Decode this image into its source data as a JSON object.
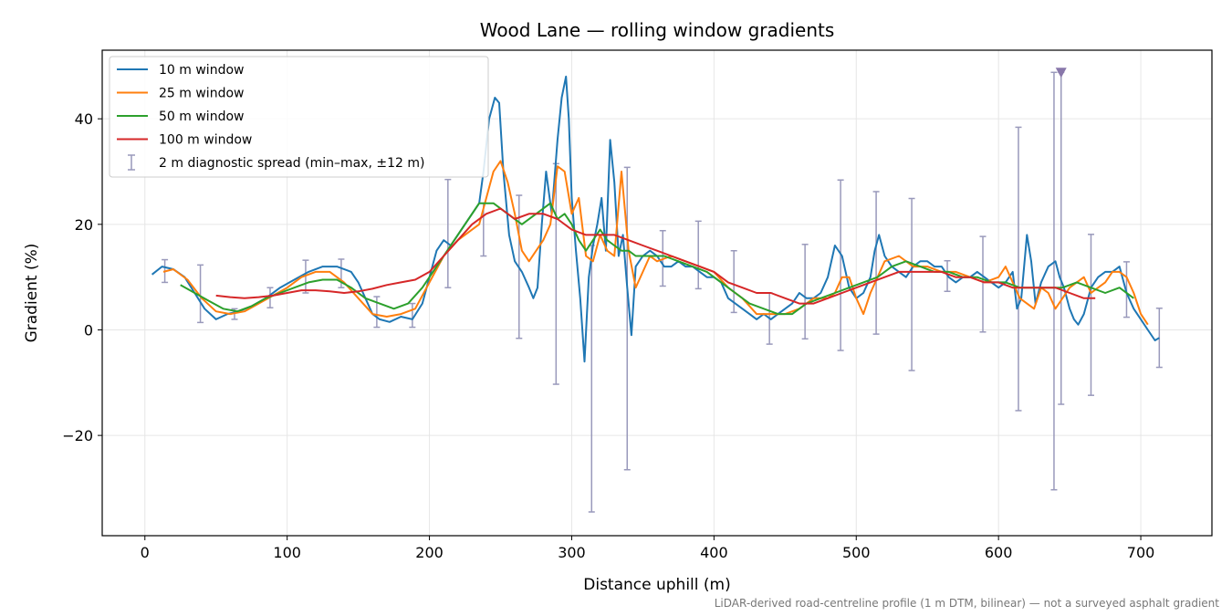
{
  "chart_data": {
    "type": "line",
    "title": "Wood Lane — rolling window gradients",
    "xlabel": "Distance uphill (m)",
    "ylabel": "Gradient (%)",
    "footnote": "LiDAR-derived road-centreline profile (1 m DTM, bilinear) — not a surveyed asphalt gradient",
    "xlim": [
      -30,
      750
    ],
    "ylim": [
      -39,
      53
    ],
    "xticks": [
      0,
      100,
      200,
      300,
      400,
      500,
      600,
      700
    ],
    "yticks": [
      -20,
      0,
      20,
      40
    ],
    "grid": true,
    "legend_position": "top-left",
    "series": [
      {
        "name": "10 m window",
        "color": "#1f77b4",
        "x": [
          5,
          12,
          20,
          28,
          35,
          42,
          50,
          58,
          66,
          75,
          85,
          95,
          105,
          115,
          125,
          135,
          145,
          150,
          155,
          160,
          165,
          172,
          180,
          188,
          195,
          200,
          205,
          210,
          215,
          220,
          225,
          230,
          235,
          238,
          242,
          246,
          249,
          252,
          256,
          260,
          265,
          270,
          273,
          276,
          279,
          282,
          286,
          290,
          293,
          296,
          298,
          300,
          303,
          306,
          309,
          312,
          315,
          318,
          321,
          324,
          327,
          330,
          333,
          336,
          339,
          342,
          345,
          350,
          355,
          360,
          365,
          370,
          375,
          380,
          385,
          390,
          395,
          400,
          405,
          410,
          415,
          420,
          425,
          430,
          435,
          440,
          445,
          450,
          455,
          460,
          465,
          470,
          475,
          480,
          485,
          490,
          495,
          500,
          505,
          510,
          513,
          516,
          520,
          525,
          530,
          535,
          540,
          545,
          550,
          555,
          560,
          565,
          570,
          575,
          580,
          585,
          590,
          595,
          600,
          605,
          610,
          613,
          616,
          620,
          623,
          626,
          630,
          635,
          640,
          643,
          646,
          650,
          653,
          656,
          660,
          665,
          670,
          675,
          680,
          685,
          690,
          695,
          700,
          705,
          710,
          713
        ],
        "y": [
          10.5,
          12,
          11.5,
          10,
          7,
          4,
          2,
          3,
          3.5,
          4.5,
          6,
          8,
          9.5,
          11,
          12,
          12,
          11,
          9,
          6,
          3,
          2,
          1.5,
          2.5,
          2,
          5,
          10,
          15,
          17,
          16,
          18,
          20,
          22,
          24,
          30,
          40,
          44,
          43,
          30,
          18,
          13,
          11,
          8,
          6,
          8,
          20,
          30,
          22,
          36,
          44,
          48,
          40,
          25,
          15,
          6,
          -6,
          10,
          16,
          20,
          25,
          15,
          36,
          28,
          14,
          18,
          8,
          -1,
          12,
          14,
          15,
          14,
          12,
          12,
          13,
          12,
          12,
          11,
          10,
          10,
          9,
          6,
          5,
          4,
          3,
          2,
          3,
          2,
          3,
          4,
          5,
          7,
          6,
          6,
          7,
          10,
          16,
          14,
          8,
          6,
          7,
          10,
          15,
          18,
          14,
          12,
          11,
          10,
          12,
          13,
          13,
          12,
          12,
          10,
          9,
          10,
          10,
          11,
          10,
          9,
          8,
          9,
          11,
          4,
          6,
          18,
          13,
          5,
          9,
          12,
          13,
          10,
          8,
          4,
          2,
          1,
          3,
          8,
          10,
          11,
          11,
          12,
          7,
          4,
          2,
          0,
          -2,
          -1.5
        ]
      },
      {
        "name": "25 m window",
        "color": "#ff7f0e",
        "x": [
          13,
          20,
          30,
          40,
          50,
          60,
          70,
          80,
          90,
          100,
          110,
          120,
          130,
          140,
          150,
          160,
          170,
          180,
          190,
          200,
          210,
          220,
          230,
          235,
          240,
          245,
          250,
          255,
          260,
          265,
          270,
          275,
          280,
          285,
          290,
          295,
          300,
          305,
          310,
          315,
          320,
          325,
          330,
          335,
          340,
          345,
          350,
          355,
          360,
          370,
          380,
          390,
          400,
          410,
          420,
          430,
          440,
          450,
          460,
          470,
          480,
          485,
          490,
          495,
          500,
          505,
          510,
          520,
          530,
          540,
          550,
          560,
          570,
          580,
          590,
          600,
          605,
          610,
          615,
          620,
          625,
          630,
          635,
          640,
          645,
          650,
          655,
          660,
          665,
          670,
          675,
          680,
          685,
          690,
          695,
          700,
          705
        ],
        "y": [
          11,
          11.5,
          9.5,
          6,
          3.5,
          3,
          3.5,
          5,
          6.5,
          8,
          10,
          11,
          11,
          9,
          6,
          3,
          2.5,
          3,
          4,
          9,
          14,
          17,
          19,
          20,
          25,
          30,
          32,
          28,
          22,
          15,
          13,
          15,
          17,
          20,
          31,
          30,
          22,
          25,
          14,
          13,
          18,
          15,
          14,
          30,
          15,
          8,
          11,
          14,
          13,
          14,
          13,
          12,
          11,
          8,
          6,
          3,
          3,
          3,
          4,
          6,
          6,
          7,
          10,
          10,
          6,
          3,
          7,
          13,
          14,
          12,
          12,
          11,
          11,
          10,
          9,
          10,
          12,
          9,
          6,
          5,
          4,
          8,
          7,
          4,
          6,
          8,
          9,
          10,
          7,
          8,
          9,
          11,
          11,
          10,
          7,
          3,
          1
        ]
      },
      {
        "name": "50 m window",
        "color": "#2ca02c",
        "x": [
          25,
          35,
          45,
          55,
          65,
          75,
          85,
          95,
          105,
          115,
          125,
          135,
          145,
          155,
          165,
          175,
          185,
          195,
          205,
          215,
          225,
          235,
          245,
          255,
          265,
          275,
          285,
          290,
          295,
          300,
          305,
          310,
          315,
          320,
          325,
          330,
          335,
          340,
          345,
          355,
          365,
          375,
          385,
          395,
          405,
          415,
          425,
          435,
          445,
          455,
          465,
          475,
          485,
          495,
          505,
          515,
          525,
          535,
          545,
          555,
          565,
          575,
          585,
          595,
          605,
          615,
          625,
          635,
          645,
          655,
          665,
          675,
          685,
          695
        ],
        "y": [
          8.5,
          7,
          5.5,
          4,
          3.5,
          4.5,
          6,
          7,
          8,
          9,
          9.5,
          9.5,
          8,
          6,
          5,
          4,
          5,
          8,
          12,
          16,
          20,
          24,
          24,
          22,
          20,
          22,
          24,
          21,
          22,
          20,
          17,
          15,
          17,
          19,
          17,
          16,
          15,
          15,
          14,
          14,
          14,
          13,
          12,
          11,
          9,
          7,
          5,
          4,
          3,
          3,
          5,
          6,
          7,
          8,
          9,
          10,
          12,
          13,
          12,
          11,
          11,
          10,
          10,
          9,
          9,
          8,
          8,
          8,
          8,
          9,
          8,
          7,
          8,
          6
        ]
      },
      {
        "name": "100 m window",
        "color": "#d62728",
        "x": [
          50,
          60,
          70,
          80,
          90,
          100,
          110,
          120,
          130,
          140,
          150,
          160,
          170,
          180,
          190,
          200,
          210,
          220,
          230,
          240,
          250,
          260,
          270,
          280,
          290,
          300,
          310,
          320,
          330,
          340,
          350,
          360,
          370,
          380,
          390,
          400,
          410,
          420,
          430,
          440,
          450,
          460,
          470,
          480,
          490,
          500,
          510,
          520,
          530,
          540,
          550,
          560,
          570,
          580,
          590,
          600,
          610,
          620,
          630,
          640,
          650,
          660,
          668
        ],
        "y": [
          6.5,
          6.2,
          6,
          6.2,
          6.5,
          7,
          7.5,
          7.5,
          7.3,
          7,
          7.3,
          7.8,
          8.5,
          9,
          9.5,
          11,
          14,
          17,
          20,
          22,
          23,
          21,
          22,
          22,
          21,
          19,
          18,
          18,
          18,
          17,
          16,
          15,
          14,
          13,
          12,
          11,
          9,
          8,
          7,
          7,
          6,
          5,
          5,
          6,
          7,
          8,
          9,
          10,
          11,
          11,
          11,
          11,
          10,
          10,
          9,
          9,
          8,
          8,
          8,
          8,
          7,
          6,
          6
        ]
      },
      {
        "name": "2 m diagnostic spread (min–max, ±12 m)",
        "color": "#9999bb",
        "type": "errorbar",
        "points": [
          {
            "x": 14,
            "min": 9,
            "max": 13.3
          },
          {
            "x": 39,
            "min": 1.4,
            "max": 12.3
          },
          {
            "x": 63,
            "min": 2,
            "max": 4
          },
          {
            "x": 88,
            "min": 4.2,
            "max": 8
          },
          {
            "x": 113,
            "min": 7,
            "max": 13.2
          },
          {
            "x": 138,
            "min": 8,
            "max": 13.4
          },
          {
            "x": 163,
            "min": 0.5,
            "max": 6.3
          },
          {
            "x": 188,
            "min": 0.5,
            "max": 5
          },
          {
            "x": 213,
            "min": 8,
            "max": 28.5
          },
          {
            "x": 238,
            "min": 14,
            "max": 24
          },
          {
            "x": 263,
            "min": -1.6,
            "max": 25.5
          },
          {
            "x": 289,
            "min": -10.3,
            "max": 31.5
          },
          {
            "x": 314,
            "min": -34.5,
            "max": 16
          },
          {
            "x": 339,
            "min": -26.5,
            "max": 30.8
          },
          {
            "x": 364,
            "min": 8.3,
            "max": 18.8
          },
          {
            "x": 389,
            "min": 7.8,
            "max": 20.6
          },
          {
            "x": 414,
            "min": 3.3,
            "max": 15
          },
          {
            "x": 439,
            "min": -2.7,
            "max": 7
          },
          {
            "x": 464,
            "min": -1.7,
            "max": 16.2
          },
          {
            "x": 489,
            "min": -3.9,
            "max": 28.4
          },
          {
            "x": 514,
            "min": -0.8,
            "max": 26.2
          },
          {
            "x": 539,
            "min": -7.7,
            "max": 24.9
          },
          {
            "x": 564,
            "min": 7.3,
            "max": 13.1
          },
          {
            "x": 589,
            "min": -0.4,
            "max": 17.7
          },
          {
            "x": 614,
            "min": -15.3,
            "max": 38.4
          },
          {
            "x": 639,
            "min": -30.3,
            "max": 48.8
          },
          {
            "x": 644,
            "min": -14.1,
            "max": 48.8
          },
          {
            "x": 665,
            "min": -12.4,
            "max": 18.1
          },
          {
            "x": 690,
            "min": 2.4,
            "max": 12.9
          },
          {
            "x": 713,
            "min": -7.1,
            "max": 4.1
          }
        ]
      }
    ],
    "annotations": [
      {
        "type": "triangle-marker",
        "x": 644,
        "y": 48.8,
        "color": "#8877aa"
      }
    ]
  }
}
